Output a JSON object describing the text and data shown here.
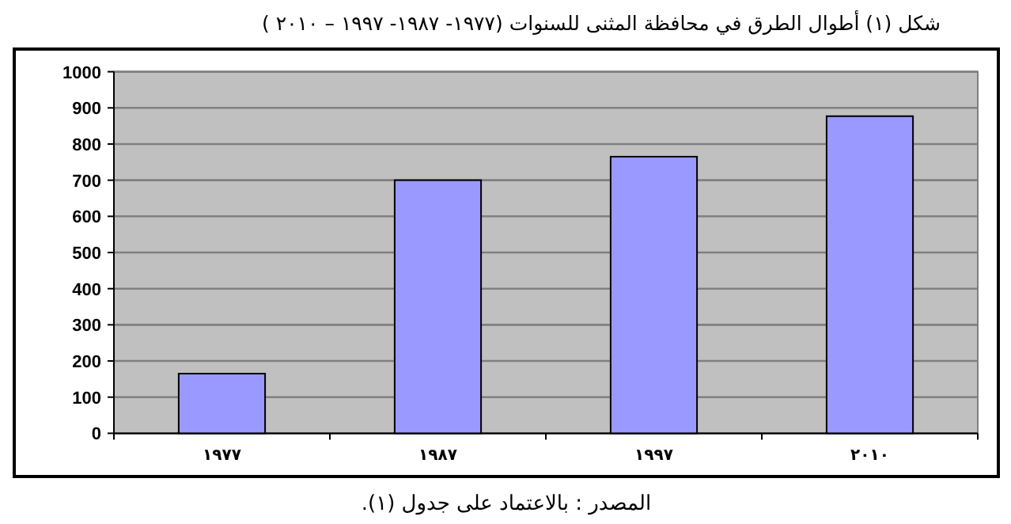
{
  "chart_data": {
    "type": "bar",
    "title": "شكل (١) أطوال الطرق في محافظة المثنى للسنوات (١٩٧٧- ١٩٨٧- ١٩٩٧ – ٢٠١٠ )",
    "categories": [
      "١٩٧٧",
      "١٩٨٧",
      "١٩٩٧",
      "٢٠١٠"
    ],
    "values": [
      165,
      700,
      765,
      877
    ],
    "color": "#9999ff",
    "ylim": [
      0,
      1000
    ],
    "yticks": [
      0,
      100,
      200,
      300,
      400,
      500,
      600,
      700,
      800,
      900,
      1000
    ],
    "grid": "y",
    "annotations": [
      "المصدر : بالاعتماد على جدول (١)."
    ]
  }
}
